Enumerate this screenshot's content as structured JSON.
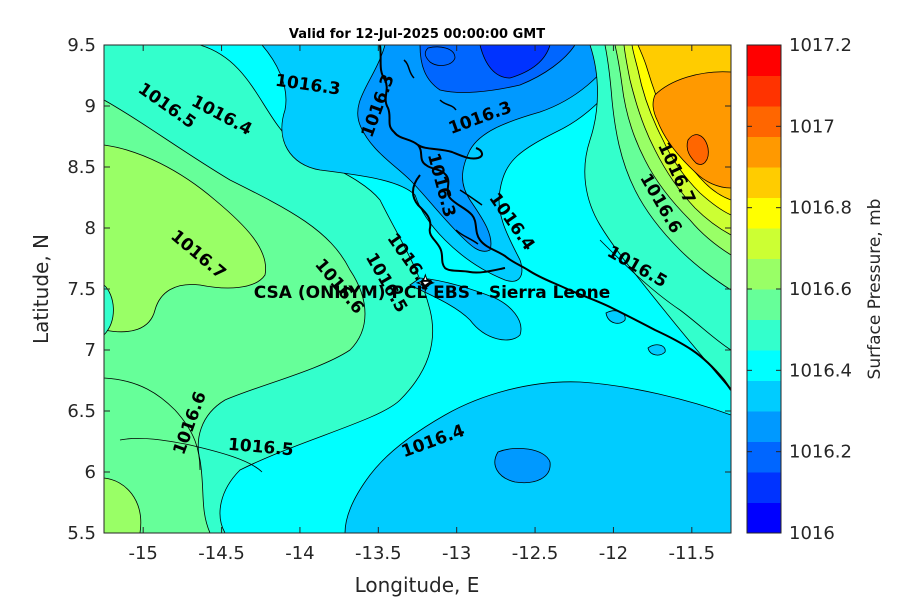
{
  "title": "Valid for 12-Jul-2025 00:00:00 GMT",
  "xlabel": "Longitude, E",
  "ylabel": "Latitude, N",
  "x_ticks": [
    "-15",
    "-14.5",
    "-14",
    "-13.5",
    "-13",
    "-12.5",
    "-12",
    "-11.5"
  ],
  "y_ticks": [
    "9.5",
    "9",
    "8.5",
    "8",
    "7.5",
    "7",
    "6.5",
    "6",
    "5.5"
  ],
  "colorbar": {
    "label": "Surface Pressure, mb",
    "ticks": [
      "1017.2",
      "1017",
      "1016.8",
      "1016.6",
      "1016.4",
      "1016.2",
      "1016"
    ],
    "range": [
      1016,
      1017.2
    ],
    "colors": [
      "#0000ff",
      "#0033ff",
      "#0066ff",
      "#0099ff",
      "#00ccff",
      "#00ffff",
      "#33ffcc",
      "#66ff99",
      "#99ff66",
      "#ccff33",
      "#ffff00",
      "#ffcc00",
      "#ff9900",
      "#ff6600",
      "#ff3300",
      "#ff0000"
    ]
  },
  "station_label": "CSA (ONHYM) PCL EBS  - Sierra Leone",
  "contour_labels": [
    {
      "text": "1016.5",
      "lon": -14.85,
      "lat": 9.0
    },
    {
      "text": "1016.4",
      "lon": -14.5,
      "lat": 8.92
    },
    {
      "text": "1016.3",
      "lon": -13.95,
      "lat": 9.17
    },
    {
      "text": "1016.3",
      "lon": -13.5,
      "lat": 9.0
    },
    {
      "text": "1016.3",
      "lon": -12.85,
      "lat": 8.9
    },
    {
      "text": "1016.3",
      "lon": -13.1,
      "lat": 8.35
    },
    {
      "text": "1016.4",
      "lon": -12.65,
      "lat": 8.05
    },
    {
      "text": "1016.5",
      "lon": -11.85,
      "lat": 7.68
    },
    {
      "text": "1016.6",
      "lon": -11.7,
      "lat": 8.2
    },
    {
      "text": "1016.7",
      "lon": -11.6,
      "lat": 8.45
    },
    {
      "text": "1016.7",
      "lon": -14.65,
      "lat": 7.78
    },
    {
      "text": "1016.6",
      "lon": -13.75,
      "lat": 7.52
    },
    {
      "text": "1016.5",
      "lon": -13.45,
      "lat": 7.55
    },
    {
      "text": "1016.4",
      "lon": -13.3,
      "lat": 7.72
    },
    {
      "text": "1016.6",
      "lon": -14.7,
      "lat": 6.4
    },
    {
      "text": "1016.5",
      "lon": -14.25,
      "lat": 6.2
    },
    {
      "text": "1016.4",
      "lon": -13.15,
      "lat": 6.25
    }
  ],
  "station": {
    "lon": -13.2,
    "lat": 7.55
  }
}
